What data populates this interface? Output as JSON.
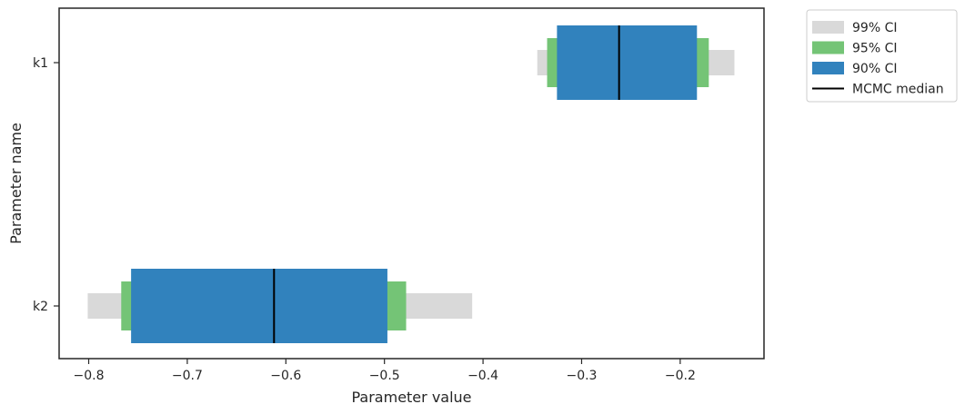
{
  "chart_data": {
    "type": "range-bar",
    "xlabel": "Parameter value",
    "ylabel": "Parameter name",
    "xlim": [
      -0.83,
      -0.115
    ],
    "x_ticks": [
      -0.8,
      -0.7,
      -0.6,
      -0.5,
      -0.4,
      -0.3,
      -0.2
    ],
    "x_tick_labels": [
      "−0.8",
      "−0.7",
      "−0.6",
      "−0.5",
      "−0.4",
      "−0.3",
      "−0.2"
    ],
    "categories": [
      "k1",
      "k2"
    ],
    "parameters": [
      {
        "name": "k1",
        "ci99": [
          -0.345,
          -0.145
        ],
        "ci95": [
          -0.335,
          -0.171
        ],
        "ci90": [
          -0.325,
          -0.183
        ],
        "median": -0.262
      },
      {
        "name": "k2",
        "ci99": [
          -0.801,
          -0.411
        ],
        "ci95": [
          -0.767,
          -0.478
        ],
        "ci90": [
          -0.757,
          -0.497
        ],
        "median": -0.612
      }
    ],
    "legend": {
      "position": "outside-upper-right",
      "entries": [
        {
          "label": "99% CI",
          "color": "#d9d9d9",
          "kind": "patch"
        },
        {
          "label": "95% CI",
          "color": "#74c476",
          "kind": "patch"
        },
        {
          "label": "90% CI",
          "color": "#3182bd",
          "kind": "patch"
        },
        {
          "label": "MCMC median",
          "color": "#000000",
          "kind": "line"
        }
      ]
    },
    "grid": false
  }
}
